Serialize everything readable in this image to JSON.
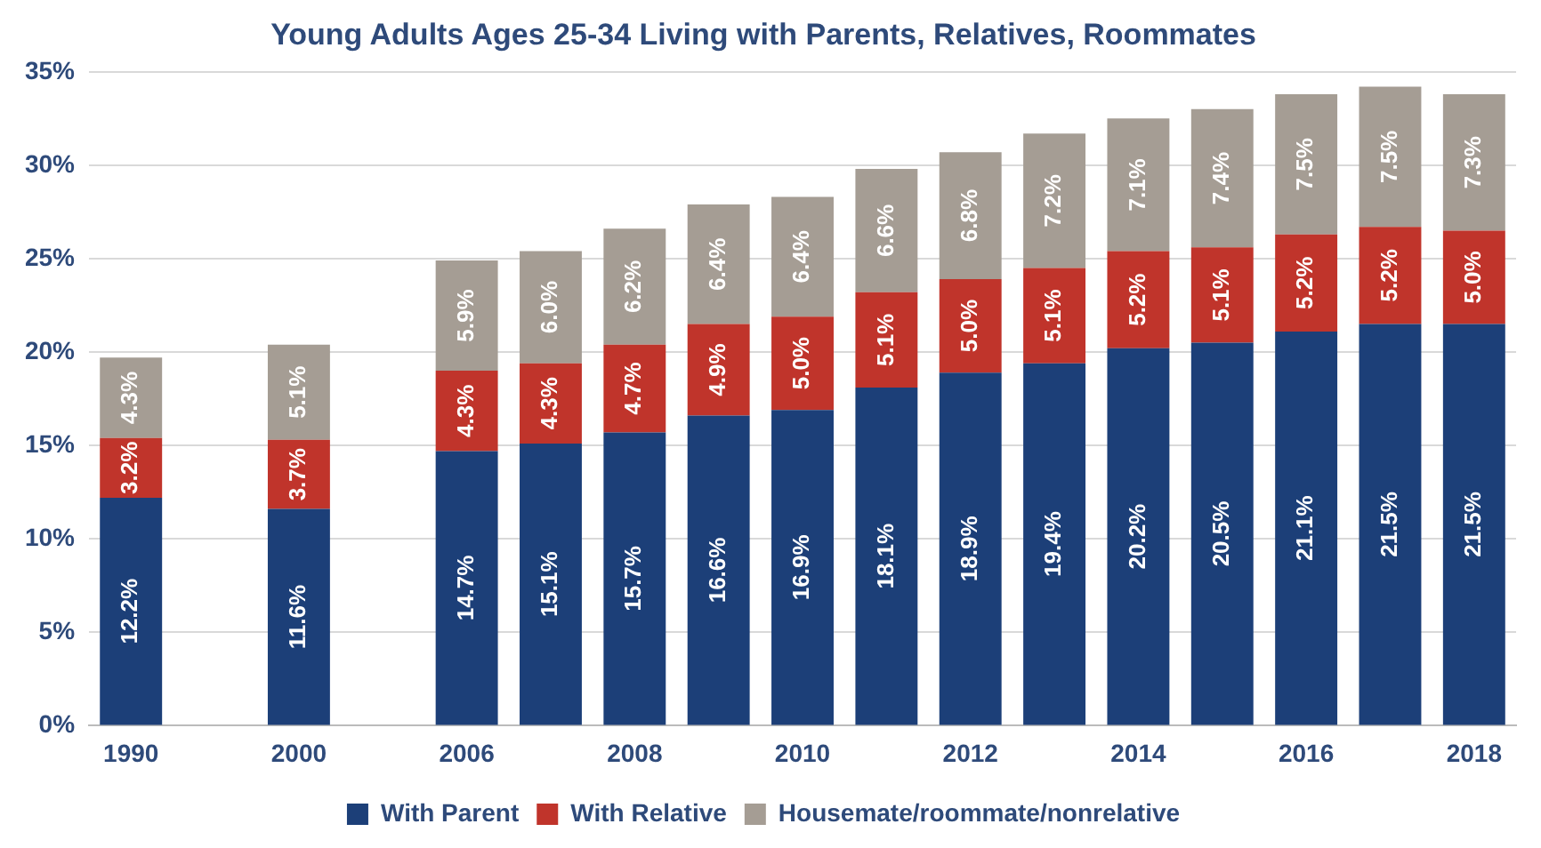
{
  "chart_data": {
    "type": "bar",
    "stacked": true,
    "title": "Young Adults Ages 25-34 Living with Parents, Relatives, Roommates",
    "categories": [
      "1990",
      null,
      "2000",
      null,
      "2006",
      null,
      "2008",
      null,
      "2010",
      null,
      "2012",
      null,
      "2014",
      null,
      "2016",
      null,
      "2018"
    ],
    "series": [
      {
        "name": "With Parent",
        "color": "#1c3f78",
        "values": [
          12.2,
          null,
          11.6,
          null,
          14.7,
          15.1,
          15.7,
          16.6,
          16.9,
          18.1,
          18.9,
          19.4,
          20.2,
          20.5,
          21.1,
          21.5,
          21.5
        ],
        "value_labels": [
          "12.2%",
          null,
          "11.6%",
          null,
          "14.7%",
          "15.1%",
          "15.7%",
          "16.6%",
          "16.9%",
          "18.1%",
          "18.9%",
          "19.4%",
          "20.2%",
          "20.5%",
          "21.1%",
          "21.5%",
          "21.5%"
        ]
      },
      {
        "name": "With Relative",
        "color": "#c0342b",
        "values": [
          3.2,
          null,
          3.7,
          null,
          4.3,
          4.3,
          4.7,
          4.9,
          5.0,
          5.1,
          5.0,
          5.1,
          5.2,
          5.1,
          5.2,
          5.2,
          5.0
        ],
        "value_labels": [
          "3.2%",
          null,
          "3.7%",
          null,
          "4.3%",
          "4.3%",
          "4.7%",
          "4.9%",
          "5.0%",
          "5.1%",
          "5.0%",
          "5.1%",
          "5.2%",
          "5.1%",
          "5.2%",
          "5.2%",
          "5.0%"
        ]
      },
      {
        "name": "Housemate/roommate/nonrelative",
        "color": "#a59d94",
        "values": [
          4.3,
          null,
          5.1,
          null,
          5.9,
          6.0,
          6.2,
          6.4,
          6.4,
          6.6,
          6.8,
          7.2,
          7.1,
          7.4,
          7.5,
          7.5,
          7.3
        ],
        "value_labels": [
          "4.3%",
          null,
          "5.1%",
          null,
          "5.9%",
          "6.0%",
          "6.2%",
          "6.4%",
          "6.4%",
          "6.6%",
          "6.8%",
          "7.2%",
          "7.1%",
          "7.4%",
          "7.5%",
          "7.5%",
          "7.3%"
        ]
      }
    ],
    "ylim": [
      0,
      35
    ],
    "yticks": [
      {
        "value": 0,
        "label": "0%"
      },
      {
        "value": 5,
        "label": "5%"
      },
      {
        "value": 10,
        "label": "10%"
      },
      {
        "value": 15,
        "label": "15%"
      },
      {
        "value": 20,
        "label": "20%"
      },
      {
        "value": 25,
        "label": "25%"
      },
      {
        "value": 30,
        "label": "30%"
      },
      {
        "value": 35,
        "label": "35%"
      }
    ],
    "grid": "y",
    "legend": "bottom"
  }
}
